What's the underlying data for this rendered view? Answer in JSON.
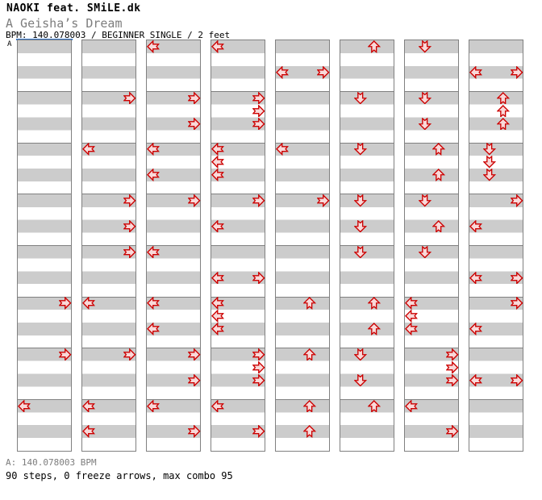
{
  "header": {
    "artist": "NAOKI feat. SMiLE.dk",
    "title": "A Geisha’s Dream",
    "info": "BPM: 140.078003 / BEGINNER SINGLE / 2 feet"
  },
  "section_label": "A",
  "footer": {
    "bpm_line": "A: 140.078003 BPM",
    "stats_line": "90 steps, 0 freeze arrows, max combo 95"
  },
  "colors": {
    "stripe_gray": "#cccccc",
    "stripe_white": "#ffffff",
    "column_border": "#808080",
    "arrow_fill": "#f9d9d9",
    "arrow_outline": "#cc0000",
    "section_line_blue": "#3377cc",
    "subtitle_gray": "#7d7d7d"
  },
  "chart_data": {
    "type": "ddr-step-chart",
    "columns": 8,
    "measures_per_column": 8,
    "beats_per_measure": 4,
    "lanes": [
      "left",
      "down",
      "up",
      "right"
    ],
    "notes": [
      [
        1,
        6,
        1,
        "R"
      ],
      [
        1,
        7,
        1,
        "R"
      ],
      [
        1,
        8,
        1,
        "L"
      ],
      [
        2,
        2,
        1,
        "R"
      ],
      [
        2,
        3,
        1,
        "L"
      ],
      [
        2,
        4,
        1,
        "R"
      ],
      [
        2,
        4,
        3,
        "R"
      ],
      [
        2,
        5,
        1,
        "R"
      ],
      [
        2,
        6,
        1,
        "L"
      ],
      [
        2,
        7,
        1,
        "R"
      ],
      [
        2,
        8,
        1,
        "L"
      ],
      [
        2,
        8,
        3,
        "L"
      ],
      [
        3,
        1,
        1,
        "L"
      ],
      [
        3,
        2,
        1,
        "R"
      ],
      [
        3,
        2,
        3,
        "R"
      ],
      [
        3,
        3,
        1,
        "L"
      ],
      [
        3,
        3,
        3,
        "L"
      ],
      [
        3,
        4,
        1,
        "R"
      ],
      [
        3,
        5,
        1,
        "L"
      ],
      [
        3,
        6,
        1,
        "L"
      ],
      [
        3,
        6,
        3,
        "L"
      ],
      [
        3,
        7,
        1,
        "R"
      ],
      [
        3,
        7,
        3,
        "R"
      ],
      [
        3,
        8,
        1,
        "L"
      ],
      [
        3,
        8,
        3,
        "R"
      ],
      [
        4,
        1,
        1,
        "L"
      ],
      [
        4,
        2,
        1,
        "R"
      ],
      [
        4,
        2,
        2,
        "R"
      ],
      [
        4,
        2,
        3,
        "R"
      ],
      [
        4,
        3,
        1,
        "L"
      ],
      [
        4,
        3,
        2,
        "L"
      ],
      [
        4,
        3,
        3,
        "L"
      ],
      [
        4,
        4,
        1,
        "R"
      ],
      [
        4,
        4,
        3,
        "L"
      ],
      [
        4,
        5,
        3,
        "L"
      ],
      [
        4,
        5,
        3,
        "R"
      ],
      [
        4,
        6,
        1,
        "L"
      ],
      [
        4,
        6,
        2,
        "L"
      ],
      [
        4,
        6,
        3,
        "L"
      ],
      [
        4,
        7,
        1,
        "R"
      ],
      [
        4,
        7,
        2,
        "R"
      ],
      [
        4,
        7,
        3,
        "R"
      ],
      [
        4,
        8,
        1,
        "L"
      ],
      [
        4,
        8,
        3,
        "R"
      ],
      [
        5,
        1,
        3,
        "L"
      ],
      [
        5,
        1,
        3,
        "R"
      ],
      [
        5,
        3,
        1,
        "L"
      ],
      [
        5,
        4,
        1,
        "R"
      ],
      [
        5,
        6,
        1,
        "U"
      ],
      [
        5,
        7,
        1,
        "U"
      ],
      [
        5,
        8,
        1,
        "U"
      ],
      [
        5,
        8,
        3,
        "U"
      ],
      [
        6,
        1,
        1,
        "U"
      ],
      [
        6,
        2,
        1,
        "D"
      ],
      [
        6,
        3,
        1,
        "D"
      ],
      [
        6,
        4,
        1,
        "D"
      ],
      [
        6,
        4,
        3,
        "D"
      ],
      [
        6,
        5,
        1,
        "D"
      ],
      [
        6,
        6,
        1,
        "U"
      ],
      [
        6,
        6,
        3,
        "U"
      ],
      [
        6,
        7,
        1,
        "D"
      ],
      [
        6,
        7,
        3,
        "D"
      ],
      [
        6,
        8,
        1,
        "U"
      ],
      [
        7,
        1,
        1,
        "D"
      ],
      [
        7,
        2,
        1,
        "D"
      ],
      [
        7,
        2,
        3,
        "D"
      ],
      [
        7,
        3,
        1,
        "U"
      ],
      [
        7,
        3,
        3,
        "U"
      ],
      [
        7,
        4,
        1,
        "D"
      ],
      [
        7,
        4,
        3,
        "U"
      ],
      [
        7,
        5,
        1,
        "D"
      ],
      [
        7,
        6,
        1,
        "L"
      ],
      [
        7,
        6,
        2,
        "L"
      ],
      [
        7,
        6,
        3,
        "L"
      ],
      [
        7,
        7,
        1,
        "R"
      ],
      [
        7,
        7,
        2,
        "R"
      ],
      [
        7,
        7,
        3,
        "R"
      ],
      [
        7,
        8,
        1,
        "L"
      ],
      [
        7,
        8,
        3,
        "R"
      ],
      [
        8,
        1,
        3,
        "L"
      ],
      [
        8,
        1,
        3,
        "R"
      ],
      [
        8,
        2,
        1,
        "U"
      ],
      [
        8,
        2,
        2,
        "U"
      ],
      [
        8,
        2,
        3,
        "U"
      ],
      [
        8,
        3,
        1,
        "D"
      ],
      [
        8,
        3,
        2,
        "D"
      ],
      [
        8,
        3,
        3,
        "D"
      ],
      [
        8,
        4,
        1,
        "R"
      ],
      [
        8,
        4,
        3,
        "L"
      ],
      [
        8,
        5,
        3,
        "L"
      ],
      [
        8,
        5,
        3,
        "R"
      ],
      [
        8,
        6,
        1,
        "R"
      ],
      [
        8,
        6,
        3,
        "L"
      ],
      [
        8,
        7,
        3,
        "L"
      ],
      [
        8,
        7,
        3,
        "R"
      ]
    ]
  }
}
